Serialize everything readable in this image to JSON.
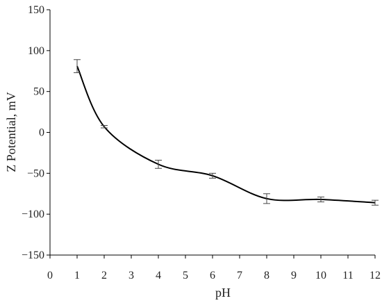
{
  "chart_data": {
    "type": "line",
    "xlabel": "pH",
    "ylabel": "Z Potential, mV",
    "xlim": [
      0,
      12
    ],
    "ylim": [
      -150,
      150
    ],
    "x_ticks": [
      0,
      1,
      2,
      3,
      4,
      5,
      6,
      7,
      8,
      9,
      10,
      11,
      12
    ],
    "y_ticks": [
      150,
      100,
      50,
      0,
      -50,
      -100,
      -150
    ],
    "grid": false,
    "legend": "none",
    "series": [
      {
        "x": [
          1,
          2,
          4,
          6,
          8,
          10,
          12
        ],
        "y": [
          81,
          7,
          -39,
          -53,
          -81,
          -82,
          -86
        ],
        "error": [
          8,
          1.5,
          5,
          3,
          6,
          3,
          3
        ]
      }
    ],
    "line_color": "#000000",
    "error_bar_color": "#444444"
  }
}
